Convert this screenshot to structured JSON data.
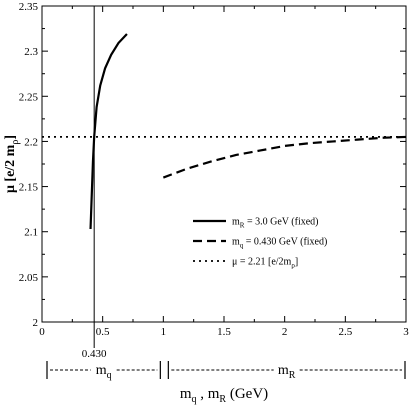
{
  "chart_data": {
    "type": "line",
    "title": "",
    "xlabel": {
      "main": "m",
      "sub1": "q",
      "mid": " , m",
      "sub2": "R",
      "tail": " (GeV)"
    },
    "ylabel": {
      "mu": "μ",
      "open": " [e/2 m",
      "sub": "ρ",
      "close": "]"
    },
    "xlim": [
      0,
      3
    ],
    "ylim": [
      2.0,
      2.35
    ],
    "x_ticks": [
      0,
      0.5,
      1,
      1.5,
      2,
      2.5,
      3
    ],
    "x_tick_labels": [
      "0",
      "0.5",
      "1",
      "1.5",
      "2",
      "2.5",
      "3"
    ],
    "y_ticks": [
      2.0,
      2.05,
      2.1,
      2.15,
      2.2,
      2.25,
      2.3,
      2.35
    ],
    "y_tick_labels": [
      "2",
      "2.05",
      "2.1",
      "2.15",
      "2.2",
      "2.25",
      "2.3",
      "2.35"
    ],
    "grid": false,
    "legend_position": "center-right",
    "series": [
      {
        "name": "m_R = 3.0 GeV (fixed)",
        "legend": {
          "m": "m",
          "sub": "R",
          "rest": " = 3.0 GeV (fixed)"
        },
        "style": "solid",
        "x": [
          0.4,
          0.42,
          0.43,
          0.45,
          0.48,
          0.52,
          0.57,
          0.63,
          0.7
        ],
        "y": [
          2.103,
          2.178,
          2.205,
          2.238,
          2.262,
          2.281,
          2.296,
          2.309,
          2.319
        ]
      },
      {
        "name": "m_q = 0.430 GeV (fixed)",
        "legend": {
          "m": "m",
          "sub": "q",
          "rest": " = 0.430 GeV (fixed)"
        },
        "style": "dashed",
        "x": [
          1.0,
          1.2,
          1.4,
          1.6,
          1.8,
          2.0,
          2.2,
          2.4,
          2.6,
          2.8,
          3.0
        ],
        "y": [
          2.16,
          2.17,
          2.178,
          2.185,
          2.19,
          2.195,
          2.198,
          2.2,
          2.202,
          2.204,
          2.205
        ]
      },
      {
        "name": "μ = 2.21 [e/2m_ρ]",
        "legend": {
          "m": "μ = 2.21 [e/2m",
          "sub": "ρ",
          "rest": "]"
        },
        "style": "dotted",
        "x": [
          0,
          3
        ],
        "y": [
          2.205,
          2.205
        ]
      }
    ],
    "annotations": {
      "vline_x": 0.43,
      "vline_label": "0.430",
      "region_q": {
        "label_main": "m",
        "label_sub": "q",
        "from": 0,
        "to": 1
      },
      "region_R": {
        "label_main": "m",
        "label_sub": "R",
        "from": 1,
        "to": 3
      }
    }
  }
}
